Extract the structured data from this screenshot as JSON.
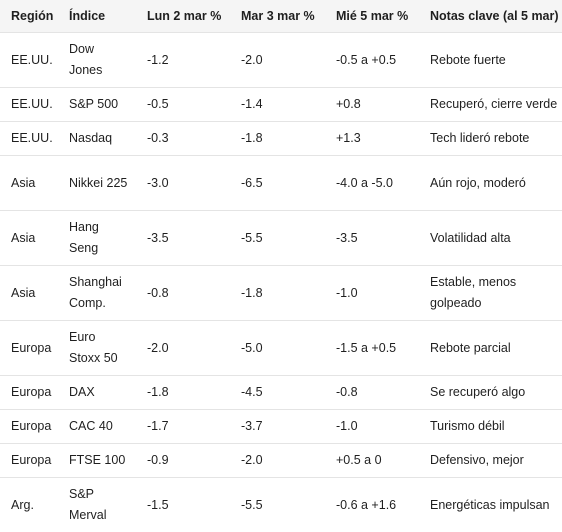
{
  "table": {
    "headers": [
      "Región",
      "Índice",
      "Lun 2 mar %",
      "Mar 3 mar %",
      "Mié 5 mar %",
      "Notas clave (al 5 mar)"
    ],
    "rows": [
      [
        "EE.UU.",
        "Dow Jones",
        "-1.2",
        "-2.0",
        "-0.5 a +0.5",
        "Rebote fuerte"
      ],
      [
        "EE.UU.",
        "S&P 500",
        "-0.5",
        "-1.4",
        "+0.8",
        "Recuperó, cierre verde"
      ],
      [
        "EE.UU.",
        "Nasdaq",
        "-0.3",
        "-1.8",
        "+1.3",
        "Tech lideró rebote"
      ],
      [
        "Asia",
        "Nikkei 225",
        "-3.0",
        "-6.5",
        "-4.0 a -5.0",
        "Aún rojo, moderó"
      ],
      [
        "Asia",
        "Hang Seng",
        "-3.5",
        "-5.5",
        "-3.5",
        "Volatilidad alta"
      ],
      [
        "Asia",
        "Shanghai Comp.",
        "-0.8",
        "-1.8",
        "-1.0",
        "Estable, menos golpeado"
      ],
      [
        "Europa",
        "Euro Stoxx 50",
        "-2.0",
        "-5.0",
        "-1.5 a +0.5",
        "Rebote parcial"
      ],
      [
        "Europa",
        "DAX",
        "-1.8",
        "-4.5",
        "-0.8",
        "Se recuperó algo"
      ],
      [
        "Europa",
        "CAC 40",
        "-1.7",
        "-3.7",
        "-1.0",
        "Turismo débil"
      ],
      [
        "Europa",
        "FTSE 100",
        "-0.9",
        "-2.0",
        "+0.5 a 0",
        "Defensivo, mejor"
      ],
      [
        "Arg.",
        "S&P Merval",
        "-1.5",
        "-5.5",
        "-0.6 a +1.6",
        "Energéticas impulsan"
      ]
    ]
  }
}
